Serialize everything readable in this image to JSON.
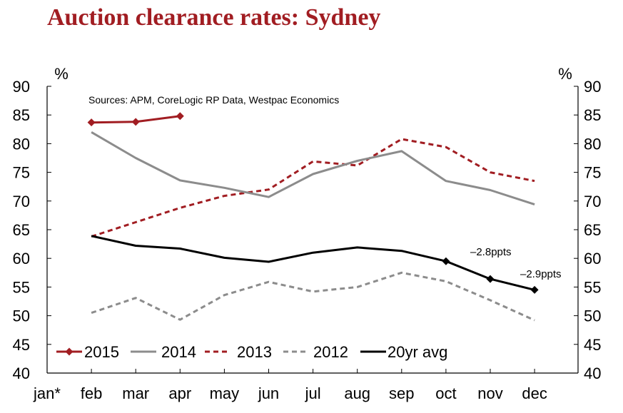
{
  "title": "Auction clearance rates: Sydney",
  "chart_data": {
    "type": "line",
    "title": "Auction clearance rates: Sydney",
    "y_unit_left": "%",
    "y_unit_right": "%",
    "ylim": [
      40,
      90
    ],
    "yticks": [
      40,
      45,
      50,
      55,
      60,
      65,
      70,
      75,
      80,
      85,
      90
    ],
    "categories": [
      "jan*",
      "feb",
      "mar",
      "apr",
      "may",
      "jun",
      "jul",
      "aug",
      "sep",
      "oct",
      "nov",
      "dec"
    ],
    "source_note": "Sources: APM, CoreLogic RP Data, Westpac Economics",
    "series": [
      {
        "name": "2015",
        "color": "#a11d22",
        "style": "solid-diamond",
        "values": [
          null,
          83.7,
          83.8,
          84.8,
          null,
          null,
          null,
          null,
          null,
          null,
          null,
          null
        ]
      },
      {
        "name": "2014",
        "color": "#8c8c8c",
        "style": "solid",
        "values": [
          null,
          82.0,
          77.5,
          73.6,
          72.3,
          70.7,
          74.7,
          77.0,
          78.7,
          73.5,
          71.9,
          69.4
        ]
      },
      {
        "name": "2013",
        "color": "#a11d22",
        "style": "dashed",
        "values": [
          null,
          63.8,
          66.3,
          68.8,
          70.9,
          72.0,
          76.9,
          76.2,
          80.8,
          79.4,
          75.0,
          73.5
        ]
      },
      {
        "name": "2012",
        "color": "#8c8c8c",
        "style": "dashed",
        "values": [
          null,
          50.5,
          53.1,
          49.3,
          53.6,
          55.9,
          54.2,
          55.0,
          57.5,
          56.0,
          52.7,
          49.2
        ]
      },
      {
        "name": "20yr avg",
        "color": "#000000",
        "style": "solid",
        "values": [
          null,
          63.9,
          62.2,
          61.7,
          60.1,
          59.4,
          61.0,
          61.9,
          61.3,
          59.5,
          56.4,
          54.5
        ],
        "markers_at": [
          "oct",
          "nov",
          "dec"
        ]
      }
    ],
    "annotations": [
      {
        "text": "–2.8ppts",
        "near": "nov"
      },
      {
        "text": "–2.9ppts",
        "near": "dec"
      }
    ],
    "legend_position": "bottom-left",
    "grid": false
  }
}
